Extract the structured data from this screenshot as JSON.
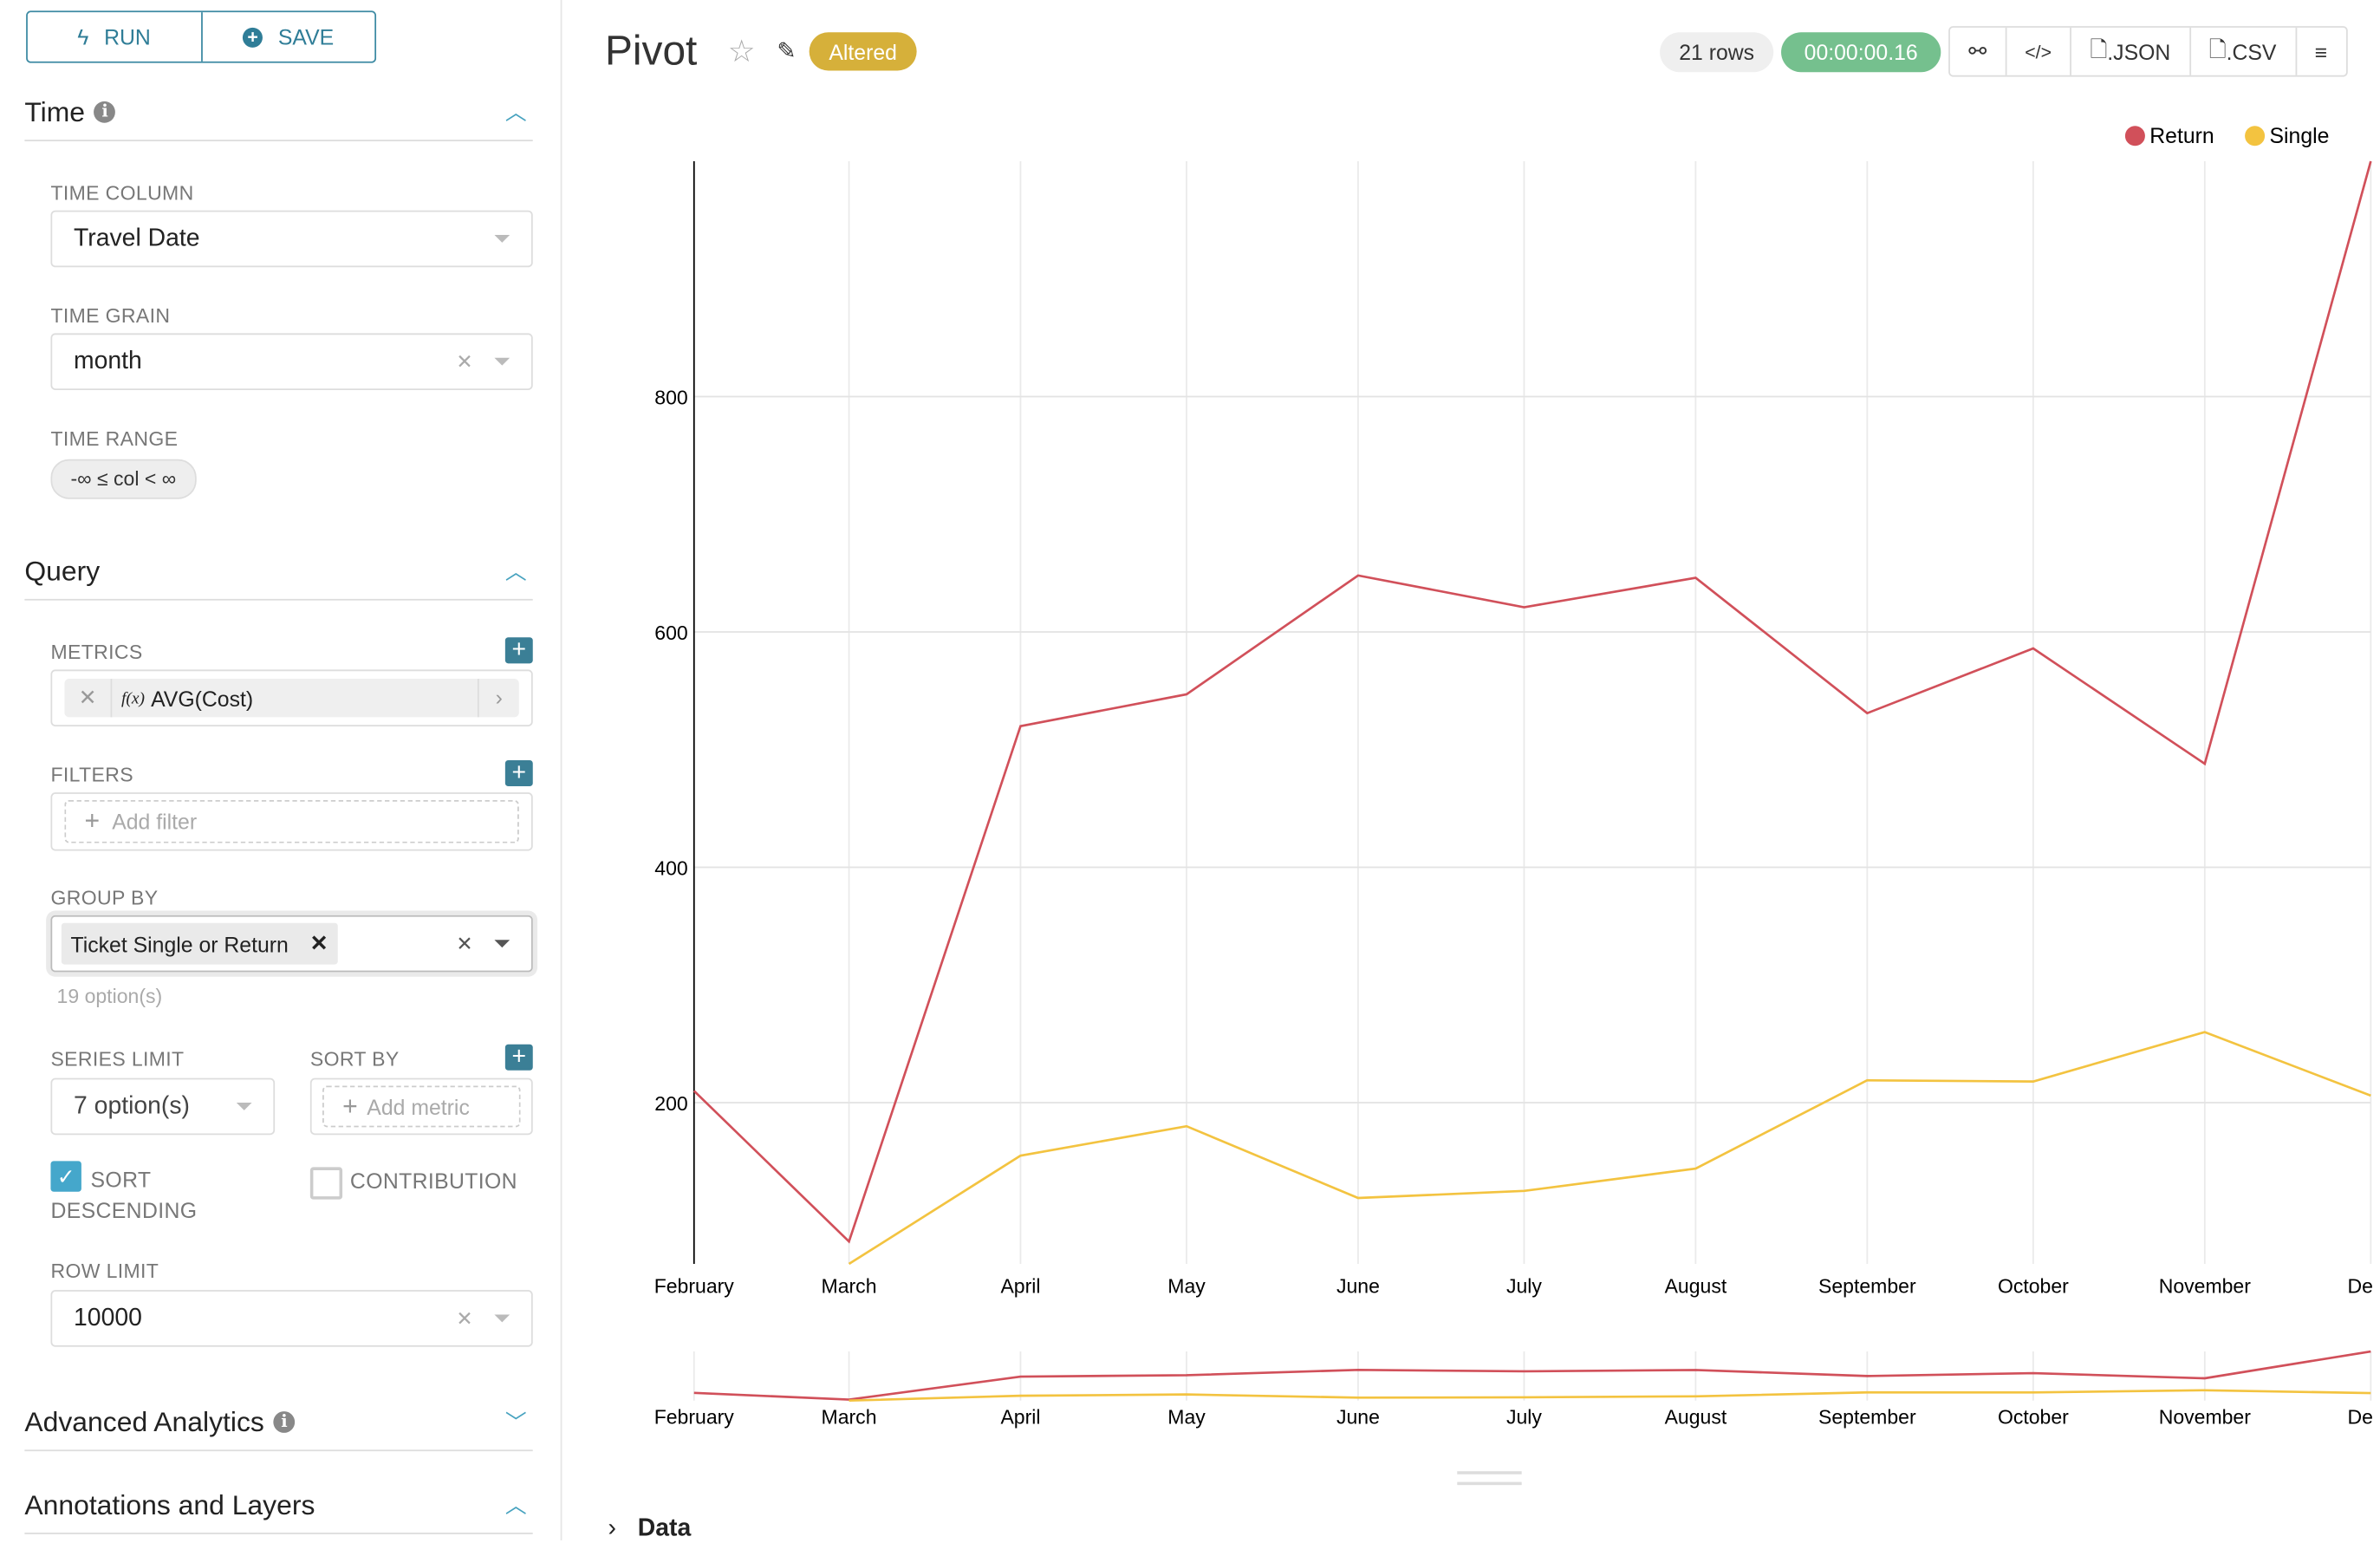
{
  "sidebar": {
    "run_label": "RUN",
    "save_label": "SAVE",
    "time_section": {
      "title": "Time",
      "time_column_label": "TIME COLUMN",
      "time_column_value": "Travel Date",
      "time_grain_label": "TIME GRAIN",
      "time_grain_value": "month",
      "time_range_label": "TIME RANGE",
      "time_range_value": "-∞ ≤ col < ∞"
    },
    "query_section": {
      "title": "Query",
      "metrics_label": "METRICS",
      "metric_fx": "f(x)",
      "metric_value": "AVG(Cost)",
      "filters_label": "FILTERS",
      "filters_placeholder": "Add filter",
      "group_by_label": "GROUP BY",
      "group_by_value": "Ticket Single or Return",
      "group_by_options": "19 option(s)",
      "series_limit_label": "SERIES LIMIT",
      "series_limit_value": "7 option(s)",
      "sort_by_label": "SORT BY",
      "sort_by_placeholder": "Add metric",
      "sort_desc_label": "SORT DESCENDING",
      "sort_desc_checked": true,
      "contribution_label": "CONTRIBUTION",
      "contribution_checked": false,
      "row_limit_label": "ROW LIMIT",
      "row_limit_value": "10000"
    },
    "advanced_title": "Advanced Analytics",
    "annotations_title": "Annotations and Layers"
  },
  "header": {
    "title": "Pivot",
    "altered_badge": "Altered",
    "rows": "21 rows",
    "timer": "00:00:00.16",
    "json_label": ".JSON",
    "csv_label": ".CSV"
  },
  "colors": {
    "accent": "#3b7f96",
    "altered": "#d6b03a",
    "timer": "#75c08e",
    "return": "#d1505a",
    "single": "#f3c340"
  },
  "data_toggle": "Data",
  "chart_data": {
    "type": "line",
    "x": [
      "February",
      "March",
      "April",
      "May",
      "June",
      "July",
      "August",
      "September",
      "October",
      "November",
      "December"
    ],
    "x_tick_labels": [
      "February",
      "March",
      "April",
      "May",
      "June",
      "July",
      "August",
      "September",
      "October",
      "November",
      "Dece"
    ],
    "y_ticks": [
      200,
      400,
      600,
      800
    ],
    "ylim": [
      63,
      1000
    ],
    "grid": true,
    "legend_position": "top-right",
    "series": [
      {
        "name": "Return",
        "color": "#d1505a",
        "values": [
          210,
          82,
          520,
          547,
          648,
          621,
          646,
          531,
          586,
          488,
          1000
        ]
      },
      {
        "name": "Single",
        "color": "#f3c340",
        "values": [
          null,
          63,
          155,
          180,
          119,
          125,
          144,
          219,
          218,
          260,
          206
        ]
      }
    ]
  }
}
